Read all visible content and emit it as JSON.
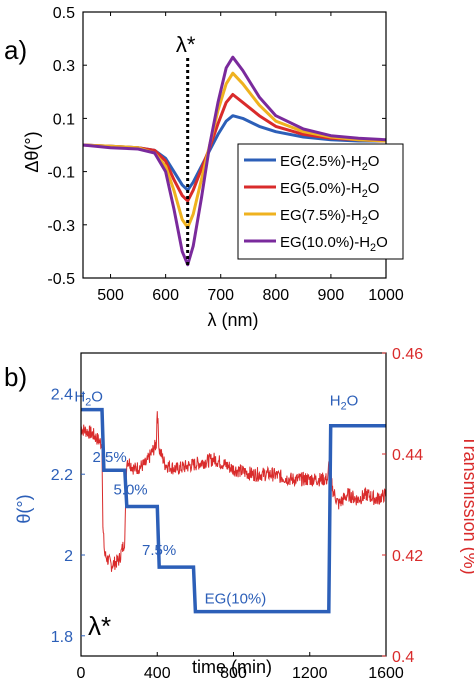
{
  "colors": {
    "blue": "#2c5fb8",
    "red": "#d92b2b",
    "yellow": "#efb21f",
    "purple": "#7a2a9c",
    "axis": "#000000"
  },
  "chart_data": [
    {
      "panel": "a)",
      "type": "line",
      "xlabel": "λ (nm)",
      "ylabel": "Δθ(°)",
      "xlim": [
        450,
        1000
      ],
      "ylim": [
        -0.5,
        0.5
      ],
      "xticks": [
        500,
        600,
        700,
        800,
        900,
        1000
      ],
      "yticks": [
        -0.5,
        -0.3,
        -0.1,
        0.1,
        0.3,
        0.5
      ],
      "ytick_labels": [
        "-0.5",
        "-0.3",
        "-0.1",
        "0.1",
        "0.3",
        "0.5"
      ],
      "annotation": {
        "text": "λ*",
        "x": 640
      },
      "legend_position": "bottom-right",
      "series": [
        {
          "name": "EG(2.5%)-H2O",
          "color": "#2c5fb8",
          "x": [
            450,
            500,
            550,
            580,
            600,
            615,
            630,
            640,
            650,
            665,
            680,
            695,
            710,
            722,
            740,
            770,
            800,
            850,
            900,
            950,
            1000
          ],
          "y": [
            0.0,
            -0.005,
            -0.01,
            -0.02,
            -0.05,
            -0.1,
            -0.15,
            -0.17,
            -0.14,
            -0.08,
            -0.02,
            0.04,
            0.09,
            0.11,
            0.1,
            0.07,
            0.05,
            0.03,
            0.02,
            0.015,
            0.015
          ]
        },
        {
          "name": "EG(5.0%)-H2O",
          "color": "#d92b2b",
          "x": [
            450,
            500,
            550,
            580,
            600,
            615,
            630,
            640,
            650,
            665,
            680,
            695,
            710,
            722,
            740,
            770,
            800,
            850,
            900,
            950,
            1000
          ],
          "y": [
            0.0,
            -0.005,
            -0.01,
            -0.02,
            -0.06,
            -0.13,
            -0.19,
            -0.21,
            -0.17,
            -0.09,
            -0.01,
            0.08,
            0.16,
            0.19,
            0.16,
            0.11,
            0.07,
            0.04,
            0.025,
            0.02,
            0.015
          ]
        },
        {
          "name": "EG(7.5%)-H2O",
          "color": "#efb21f",
          "x": [
            450,
            500,
            550,
            580,
            600,
            615,
            630,
            640,
            650,
            665,
            680,
            695,
            710,
            722,
            740,
            770,
            800,
            850,
            900,
            950,
            1000
          ],
          "y": [
            0.0,
            -0.005,
            -0.01,
            -0.03,
            -0.08,
            -0.17,
            -0.28,
            -0.31,
            -0.26,
            -0.13,
            0.0,
            0.13,
            0.23,
            0.27,
            0.23,
            0.15,
            0.09,
            0.05,
            0.03,
            0.02,
            0.015
          ]
        },
        {
          "name": "EG(10.0%)-H2O",
          "color": "#7a2a9c",
          "x": [
            450,
            500,
            550,
            580,
            600,
            615,
            630,
            640,
            650,
            665,
            680,
            695,
            710,
            722,
            740,
            770,
            800,
            850,
            900,
            950,
            1000
          ],
          "y": [
            0.0,
            -0.01,
            -0.015,
            -0.03,
            -0.1,
            -0.24,
            -0.4,
            -0.45,
            -0.38,
            -0.2,
            0.0,
            0.16,
            0.29,
            0.33,
            0.28,
            0.18,
            0.11,
            0.06,
            0.035,
            0.025,
            0.02
          ]
        }
      ]
    },
    {
      "panel": "b)",
      "type": "line",
      "xlabel": "time (min)",
      "ylabel": "θ(°)",
      "y2label": "Transmission (%)",
      "xlim": [
        0,
        1600
      ],
      "ylim": [
        1.75,
        2.5
      ],
      "y2lim": [
        0.4,
        0.46
      ],
      "xticks": [
        0,
        400,
        800,
        1200,
        1600
      ],
      "yticks": [
        1.8,
        2.0,
        2.2,
        2.4
      ],
      "ytick_labels": [
        "1.8",
        "2",
        "2.2",
        "2.4"
      ],
      "y2ticks": [
        0.4,
        0.42,
        0.44,
        0.46
      ],
      "y2tick_labels": [
        "0.4",
        "0.42",
        "0.44",
        "0.46"
      ],
      "corner_label": "λ*",
      "annotations": [
        {
          "text": "H2O",
          "x": 40,
          "y": 2.38
        },
        {
          "text": "2.5%",
          "x": 150,
          "y": 2.23
        },
        {
          "text": "5.0%",
          "x": 260,
          "y": 2.15
        },
        {
          "text": "7.5%",
          "x": 410,
          "y": 2.0
        },
        {
          "text": "EG(10%)",
          "x": 810,
          "y": 1.88
        },
        {
          "text": "H2O",
          "x": 1380,
          "y": 2.37
        }
      ],
      "series": [
        {
          "name": "θ",
          "axis": "left",
          "color": "#2c5fb8",
          "x": [
            0,
            110,
            120,
            230,
            240,
            400,
            410,
            590,
            600,
            1300,
            1310,
            1600
          ],
          "y": [
            2.36,
            2.36,
            2.21,
            2.21,
            2.12,
            2.12,
            1.97,
            1.97,
            1.86,
            1.86,
            2.32,
            2.32
          ]
        },
        {
          "name": "Transmission",
          "axis": "right",
          "color": "#d92b2b",
          "x": [
            0,
            60,
            110,
            115,
            125,
            160,
            200,
            230,
            240,
            280,
            340,
            395,
            400,
            410,
            440,
            500,
            600,
            700,
            800,
            900,
            1000,
            1100,
            1200,
            1295,
            1300,
            1320,
            1350,
            1400,
            1450,
            1500,
            1550,
            1600
          ],
          "y": [
            0.445,
            0.444,
            0.442,
            0.425,
            0.42,
            0.418,
            0.419,
            0.423,
            0.439,
            0.437,
            0.438,
            0.442,
            0.449,
            0.441,
            0.438,
            0.437,
            0.438,
            0.439,
            0.437,
            0.436,
            0.436,
            0.435,
            0.435,
            0.435,
            0.438,
            0.433,
            0.43,
            0.432,
            0.431,
            0.432,
            0.431,
            0.432
          ]
        }
      ]
    }
  ]
}
